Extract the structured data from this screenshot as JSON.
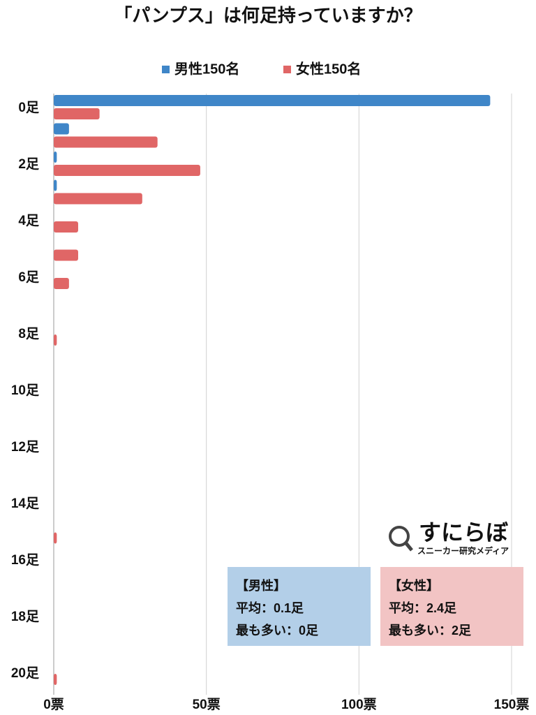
{
  "chart_data": {
    "type": "bar",
    "orientation": "horizontal",
    "title": "「パンプス」は何足持っていますか？",
    "categories": [
      "0足",
      null,
      "2足",
      null,
      "4足",
      null,
      "6足",
      null,
      "8足",
      null,
      "10足",
      null,
      "12足",
      null,
      "14足",
      null,
      "16足",
      null,
      "18足",
      null,
      "20足"
    ],
    "series": [
      {
        "name": "男性150名",
        "color": "#3f86c8",
        "values": [
          143,
          5,
          1,
          1,
          0,
          0,
          0,
          0,
          0,
          0,
          0,
          0,
          0,
          0,
          0,
          0,
          0,
          0,
          0,
          0,
          0
        ]
      },
      {
        "name": "女性150名",
        "color": "#e06666",
        "values": [
          15,
          34,
          48,
          29,
          8,
          8,
          5,
          0,
          1,
          0,
          0,
          0,
          0,
          0,
          0,
          1,
          0,
          0,
          0,
          0,
          1
        ]
      }
    ],
    "xlim": [
      0,
      150
    ],
    "xticks": [
      {
        "value": 0,
        "label": "0票"
      },
      {
        "value": 50,
        "label": "50票"
      },
      {
        "value": 100,
        "label": "100票"
      },
      {
        "value": 150,
        "label": "150票"
      }
    ],
    "grid": true,
    "legend": "top",
    "annotations": [
      {
        "color": "#b3cfe8",
        "lines": [
          "【男性】",
          "平均：0.1足",
          "最も多い：0足"
        ]
      },
      {
        "color": "#f2c4c4",
        "lines": [
          "【女性】",
          "平均：2.4足",
          "最も多い：2足"
        ]
      }
    ],
    "logo": {
      "name": "すにらぼ",
      "tagline": "スニーカー研究メディア"
    }
  }
}
